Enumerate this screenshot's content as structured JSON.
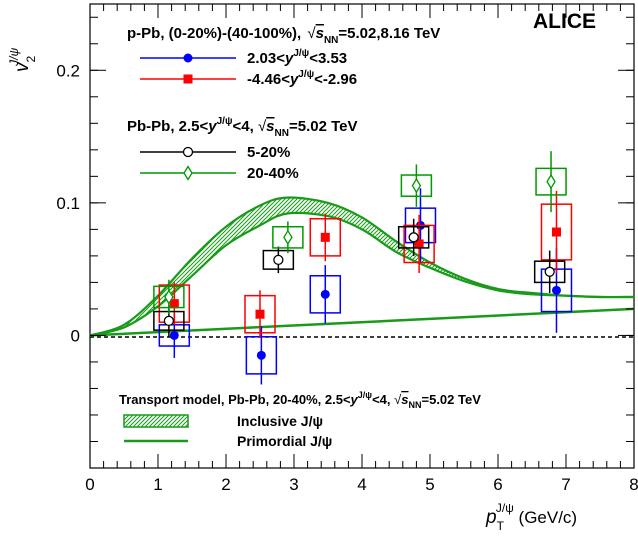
{
  "chart_data": {
    "type": "scatter",
    "experiment": "ALICE",
    "xlabel": {
      "base": "p",
      "sub": "T",
      "sup": "J/ψ",
      "unit": " (GeV/c)"
    },
    "ylabel": {
      "base": "v",
      "sub": "2",
      "sup": "J/ψ"
    },
    "xlim": [
      0,
      8
    ],
    "ylim": [
      -0.1,
      0.25
    ],
    "x_ticks": [
      "0",
      "1",
      "2",
      "3",
      "4",
      "5",
      "6",
      "7",
      "8"
    ],
    "y_ticks": [
      "0",
      "0.1",
      "0.2"
    ],
    "grid": false,
    "legend_ppb": {
      "header": "p-Pb, (0-20%)-(40-100%), ",
      "energy": "=5.02,8.16 TeV",
      "entries": [
        {
          "label": "2.03<y^{J/ψ}<3.53",
          "series": "ppb_forward"
        },
        {
          "label": "-4.46<y^{J/ψ}<-2.96",
          "series": "ppb_backward"
        }
      ]
    },
    "legend_pbpb": {
      "header": "Pb-Pb, 2.5<y^{J/ψ}<4, ",
      "energy": "=5.02 TeV",
      "entries": [
        {
          "label": "5-20%",
          "series": "pbpb_5_20"
        },
        {
          "label": "20-40%",
          "series": "pbpb_20_40"
        }
      ]
    },
    "legend_model": {
      "header": "Transport model, Pb-Pb, 20-40%, 2.5<y^{J/ψ}<4, ",
      "energy": "=5.02 TeV",
      "entries": [
        {
          "label": "Inclusive J/ψ",
          "kind": "band"
        },
        {
          "label": "Primordial J/ψ",
          "kind": "line"
        }
      ]
    },
    "series": [
      {
        "id": "ppb_forward",
        "color": "#0000ff",
        "marker": "circle-filled",
        "points": [
          {
            "x": 1.24,
            "y": 0.0,
            "stat": 0.017,
            "sys": 0.008
          },
          {
            "x": 2.52,
            "y": -0.015,
            "stat": 0.022,
            "sys": 0.014
          },
          {
            "x": 3.46,
            "y": 0.031,
            "stat": 0.022,
            "sys": 0.014
          },
          {
            "x": 4.86,
            "y": 0.083,
            "stat": 0.028,
            "sys": 0.013
          },
          {
            "x": 6.86,
            "y": 0.034,
            "stat": 0.032,
            "sys": 0.016
          }
        ]
      },
      {
        "id": "ppb_backward",
        "color": "#ff0000",
        "marker": "square-filled",
        "points": [
          {
            "x": 1.24,
            "y": 0.024,
            "stat": 0.016,
            "sys": 0.014
          },
          {
            "x": 2.5,
            "y": 0.016,
            "stat": 0.018,
            "sys": 0.014
          },
          {
            "x": 3.46,
            "y": 0.074,
            "stat": 0.018,
            "sys": 0.014
          },
          {
            "x": 4.84,
            "y": 0.069,
            "stat": 0.022,
            "sys": 0.014
          },
          {
            "x": 6.86,
            "y": 0.078,
            "stat": 0.031,
            "sys": 0.021
          }
        ]
      },
      {
        "id": "pbpb_5_20",
        "color": "#000000",
        "marker": "circle-open",
        "points": [
          {
            "x": 1.16,
            "y": 0.011,
            "stat": 0.012,
            "sys": 0.007
          },
          {
            "x": 2.77,
            "y": 0.057,
            "stat": 0.01,
            "sys": 0.007
          },
          {
            "x": 4.76,
            "y": 0.074,
            "stat": 0.014,
            "sys": 0.008
          },
          {
            "x": 6.76,
            "y": 0.048,
            "stat": 0.016,
            "sys": 0.008
          }
        ]
      },
      {
        "id": "pbpb_20_40",
        "color": "#009900",
        "marker": "diamond-open",
        "points": [
          {
            "x": 1.16,
            "y": 0.029,
            "stat": 0.013,
            "sys": 0.008
          },
          {
            "x": 2.91,
            "y": 0.074,
            "stat": 0.012,
            "sys": 0.008
          },
          {
            "x": 4.8,
            "y": 0.113,
            "stat": 0.016,
            "sys": 0.008
          },
          {
            "x": 6.78,
            "y": 0.116,
            "stat": 0.023,
            "sys": 0.01
          }
        ]
      }
    ],
    "model": {
      "color": "#1a9a1a",
      "inclusive_band": {
        "x": [
          0.0,
          0.5,
          1.0,
          1.5,
          2.0,
          2.5,
          2.9,
          3.5,
          4.0,
          4.5,
          5.0,
          5.5,
          6.0,
          6.5,
          7.0,
          7.5,
          8.0
        ],
        "low": [
          0.0,
          0.006,
          0.022,
          0.045,
          0.068,
          0.083,
          0.092,
          0.09,
          0.08,
          0.063,
          0.051,
          0.041,
          0.034,
          0.031,
          0.03,
          0.029,
          0.029
        ],
        "high": [
          0.0,
          0.008,
          0.03,
          0.058,
          0.082,
          0.098,
          0.104,
          0.1,
          0.089,
          0.071,
          0.055,
          0.043,
          0.035,
          0.032,
          0.03,
          0.029,
          0.029
        ]
      },
      "primordial": {
        "x": [
          0.0,
          8.0
        ],
        "y": [
          0.0,
          0.02
        ]
      }
    }
  }
}
